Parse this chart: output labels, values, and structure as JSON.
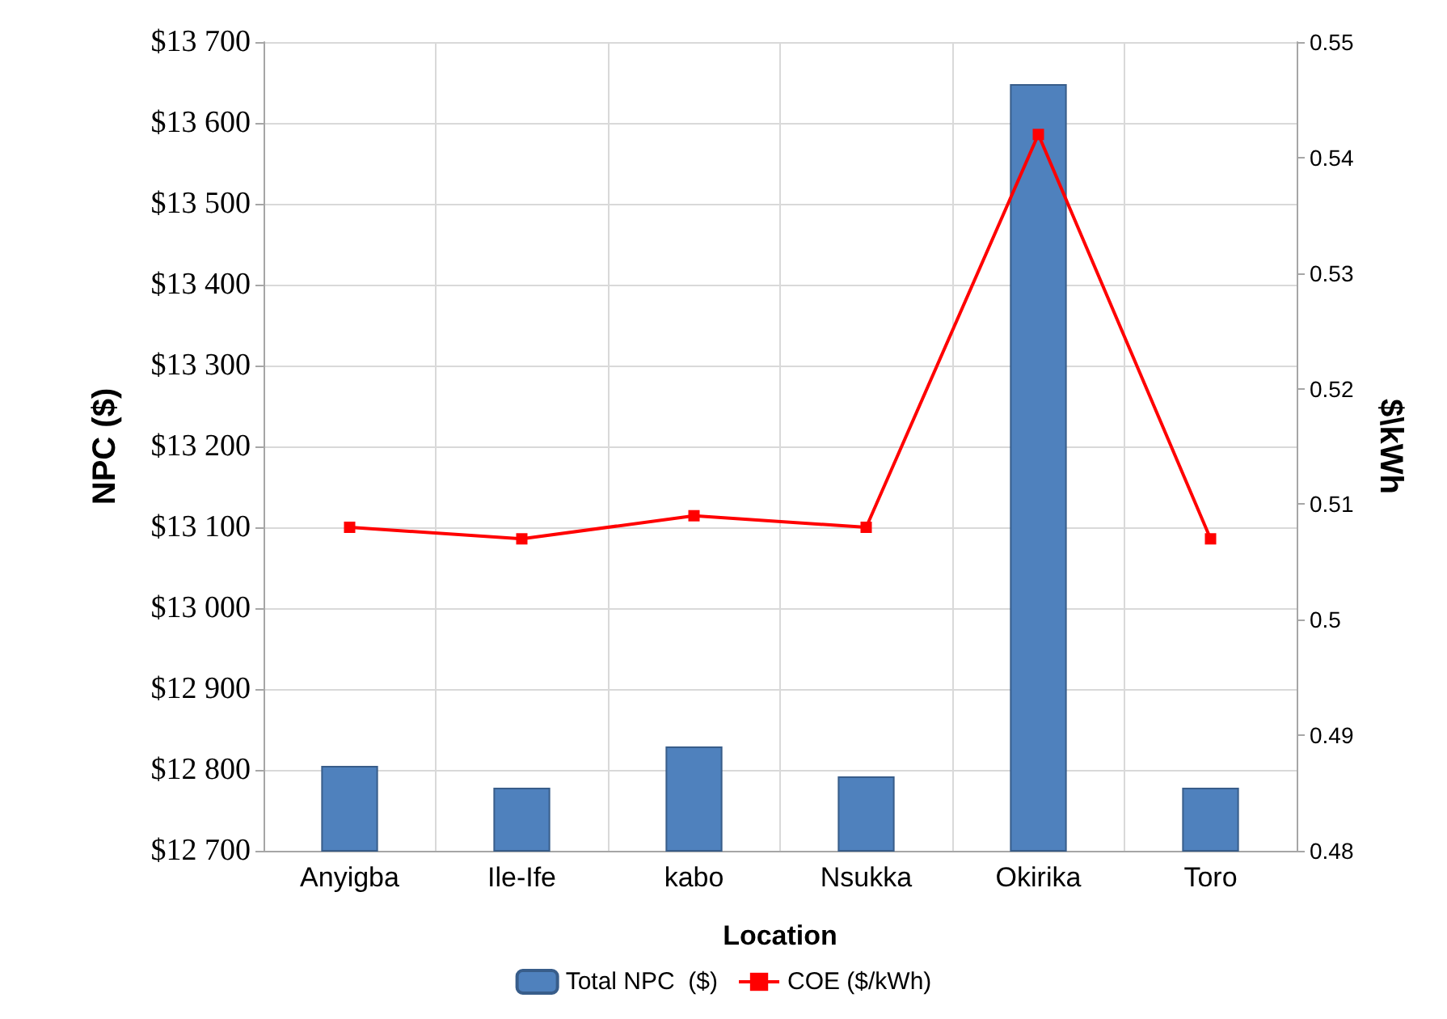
{
  "chart_data": {
    "type": "bar",
    "xlabel": "Location",
    "ylabel": "NPC ($)",
    "y2label": "$\\kWh",
    "categories": [
      "Anyigba",
      "Ile-Ife",
      "kabo",
      "Nsukka",
      "Okirika",
      "Toro"
    ],
    "series": [
      {
        "name": "Total NPC  ($)",
        "color": "#4f81bd",
        "values": [
          12805,
          12778,
          12829,
          12792,
          13648,
          12778
        ]
      },
      {
        "name": "COE ($/kWh)",
        "type": "line",
        "axis": "y2",
        "color": "#ff0000",
        "marker": "square",
        "values": [
          0.508,
          0.507,
          0.509,
          0.508,
          0.542,
          0.507
        ]
      }
    ],
    "ylim": [
      12700,
      13700
    ],
    "yticks": [
      {
        "value": 12700,
        "label": "$12 700"
      },
      {
        "value": 12800,
        "label": "$12 800"
      },
      {
        "value": 12900,
        "label": "$12 900"
      },
      {
        "value": 13000,
        "label": "$13 000"
      },
      {
        "value": 13100,
        "label": "$13 100"
      },
      {
        "value": 13200,
        "label": "$13 200"
      },
      {
        "value": 13300,
        "label": "$13 300"
      },
      {
        "value": 13400,
        "label": "$13 400"
      },
      {
        "value": 13500,
        "label": "$13 500"
      },
      {
        "value": 13600,
        "label": "$13 600"
      },
      {
        "value": 13700,
        "label": "$13 700"
      }
    ],
    "y2lim": [
      0.48,
      0.55
    ],
    "y2ticks": [
      0.48,
      0.49,
      0.5,
      0.51,
      0.52,
      0.53,
      0.54,
      0.55
    ],
    "grid": true,
    "legend": "bottom"
  }
}
